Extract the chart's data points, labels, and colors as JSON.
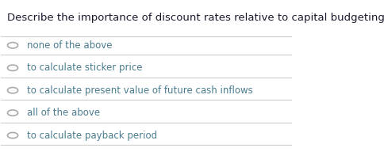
{
  "title": "Describe the importance of discount rates relative to capital budgeting?",
  "title_color": "#1a1a2e",
  "options": [
    "none of the above",
    "to calculate sticker price",
    "to calculate present value of future cash inflows",
    "all of the above",
    "to calculate payback period"
  ],
  "option_color": "#4a7c8e",
  "radio_color": "#aaaaaa",
  "line_color": "#cccccc",
  "bg_color": "#ffffff",
  "title_fontsize": 9.5,
  "option_fontsize": 8.5
}
